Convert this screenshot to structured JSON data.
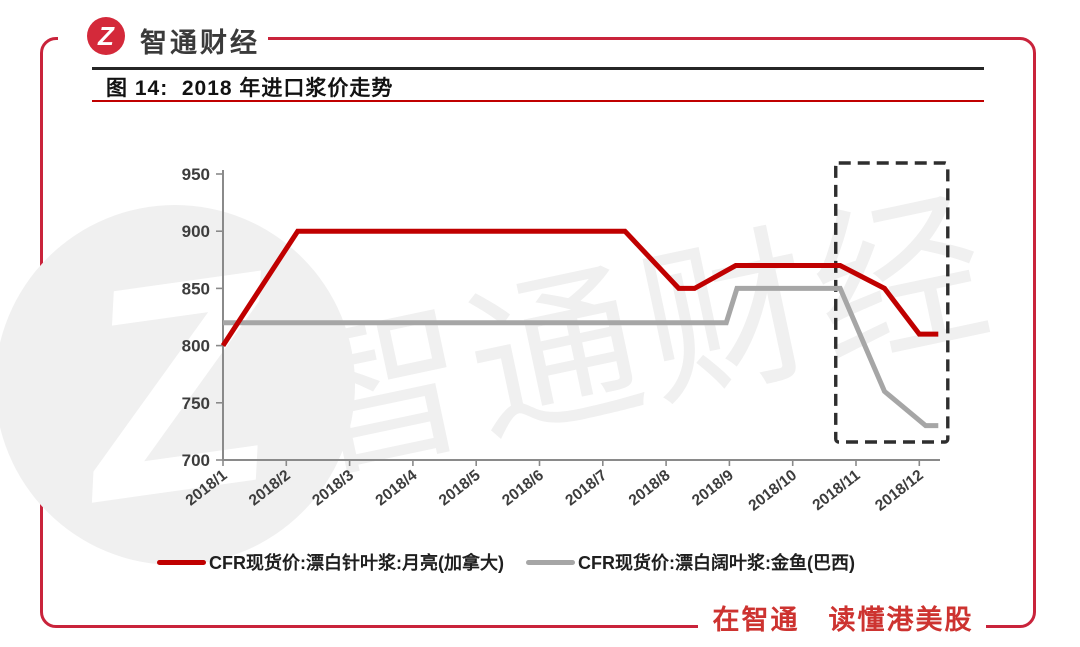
{
  "brand": {
    "logo_glyph": "Z",
    "name": "智通财经",
    "slogan": "在智通　读懂港美股",
    "brand_red": "#c9233b"
  },
  "figure": {
    "title": "图 14:  2018 年进口浆价走势"
  },
  "watermark": {
    "glyph": "Z",
    "text": "智通财经"
  },
  "chart_data": {
    "type": "line",
    "title": "2018 年进口浆价走势",
    "xlabel": "",
    "ylabel": "",
    "ylim": [
      700,
      950
    ],
    "y_ticks": [
      700,
      750,
      800,
      850,
      900,
      950
    ],
    "x_labels": [
      "2018/1",
      "2018/2",
      "2018/3",
      "2018/4",
      "2018/5",
      "2018/6",
      "2018/7",
      "2018/8",
      "2018/9",
      "2018/10",
      "2018/11",
      "2018/12"
    ],
    "grid": "off",
    "legend_position": "bottom",
    "series": [
      {
        "name": "CFR现货价:漂白针叶浆:月亮(加拿大)",
        "color": "#c00000",
        "points": [
          [
            1.0,
            800
          ],
          [
            2.18,
            900
          ],
          [
            7.35,
            900
          ],
          [
            8.2,
            850
          ],
          [
            8.45,
            850
          ],
          [
            9.1,
            870
          ],
          [
            10.75,
            870
          ],
          [
            11.45,
            850
          ],
          [
            12.0,
            810
          ],
          [
            12.3,
            810
          ]
        ]
      },
      {
        "name": "CFR现货价:漂白阔叶浆:金鱼(巴西)",
        "color": "#a6a6a6",
        "points": [
          [
            1.0,
            820
          ],
          [
            8.95,
            820
          ],
          [
            9.12,
            850
          ],
          [
            10.75,
            850
          ],
          [
            11.45,
            760
          ],
          [
            12.1,
            730
          ],
          [
            12.3,
            730
          ]
        ]
      }
    ],
    "highlight_box": {
      "from_month": 10.68,
      "to_month": 12.45
    }
  }
}
